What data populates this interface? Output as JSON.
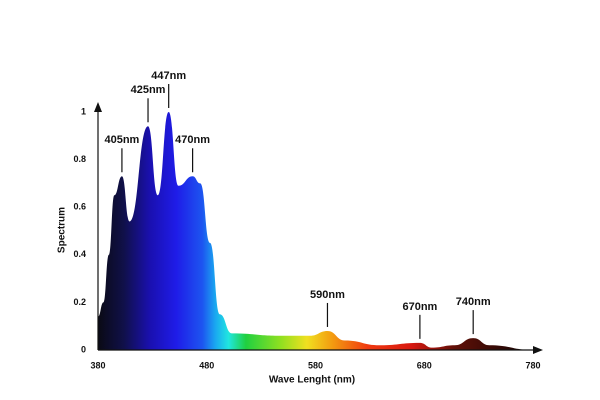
{
  "chart_data": {
    "type": "area",
    "x_label": "Wave Lenght (nm)",
    "y_label": "Spectrum",
    "x": [
      380,
      385,
      390,
      395,
      402,
      409,
      426,
      435,
      445,
      454,
      467,
      474,
      483,
      492,
      503,
      547,
      575,
      591,
      607,
      639,
      676,
      687,
      708,
      725,
      740,
      780
    ],
    "values": [
      0.14,
      0.2,
      0.4,
      0.65,
      0.73,
      0.54,
      0.94,
      0.65,
      1.0,
      0.69,
      0.73,
      0.7,
      0.45,
      0.15,
      0.07,
      0.06,
      0.06,
      0.08,
      0.04,
      0.02,
      0.03,
      0.01,
      0.02,
      0.05,
      0.02,
      0
    ],
    "xlim": [
      380,
      780
    ],
    "ylim": [
      0,
      1
    ],
    "xticks": [
      380,
      480,
      580,
      680,
      780
    ],
    "yticks": [
      0,
      0.2,
      0.4,
      0.6,
      0.8,
      1
    ],
    "annotations": [
      {
        "text": "405nm",
        "x": 402,
        "y": 0.73
      },
      {
        "text": "425nm",
        "x": 426,
        "y": 0.94
      },
      {
        "text": "447nm",
        "x": 445,
        "y": 1.0
      },
      {
        "text": "470nm",
        "x": 467,
        "y": 0.73
      },
      {
        "text": "590nm",
        "x": 591,
        "y": 0.08
      },
      {
        "text": "670nm",
        "x": 676,
        "y": 0.03
      },
      {
        "text": "740nm",
        "x": 725,
        "y": 0.05
      }
    ]
  }
}
